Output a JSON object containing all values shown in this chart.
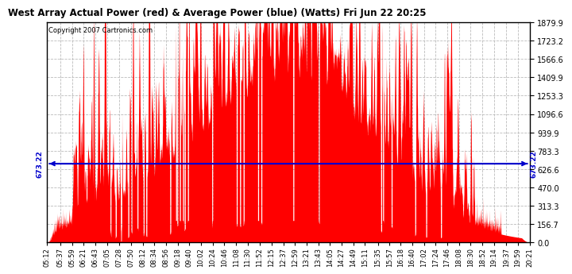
{
  "title": "West Array Actual Power (red) & Average Power (blue) (Watts) Fri Jun 22 20:25",
  "copyright": "Copyright 2007 Cartronics.com",
  "avg_power": 673.22,
  "y_max": 1879.9,
  "y_min": 0.0,
  "y_ticks": [
    0.0,
    156.7,
    313.3,
    470.0,
    626.6,
    783.3,
    939.9,
    1096.6,
    1253.3,
    1409.9,
    1566.6,
    1723.2,
    1879.9
  ],
  "bg_color": "#ffffff",
  "plot_bg_color": "#ffffff",
  "grid_color": "#bbbbbb",
  "red_color": "#ff0000",
  "blue_color": "#0000cc",
  "time_labels": [
    "05:12",
    "05:37",
    "05:59",
    "06:21",
    "06:43",
    "07:05",
    "07:28",
    "07:50",
    "08:12",
    "08:34",
    "08:56",
    "09:18",
    "09:40",
    "10:02",
    "10:24",
    "10:46",
    "11:08",
    "11:30",
    "11:52",
    "12:15",
    "12:37",
    "12:59",
    "13:21",
    "13:43",
    "14:05",
    "14:27",
    "14:49",
    "15:11",
    "15:35",
    "15:57",
    "16:18",
    "16:40",
    "17:02",
    "17:24",
    "17:46",
    "18:08",
    "18:30",
    "18:52",
    "19:14",
    "19:37",
    "19:59",
    "20:21"
  ]
}
